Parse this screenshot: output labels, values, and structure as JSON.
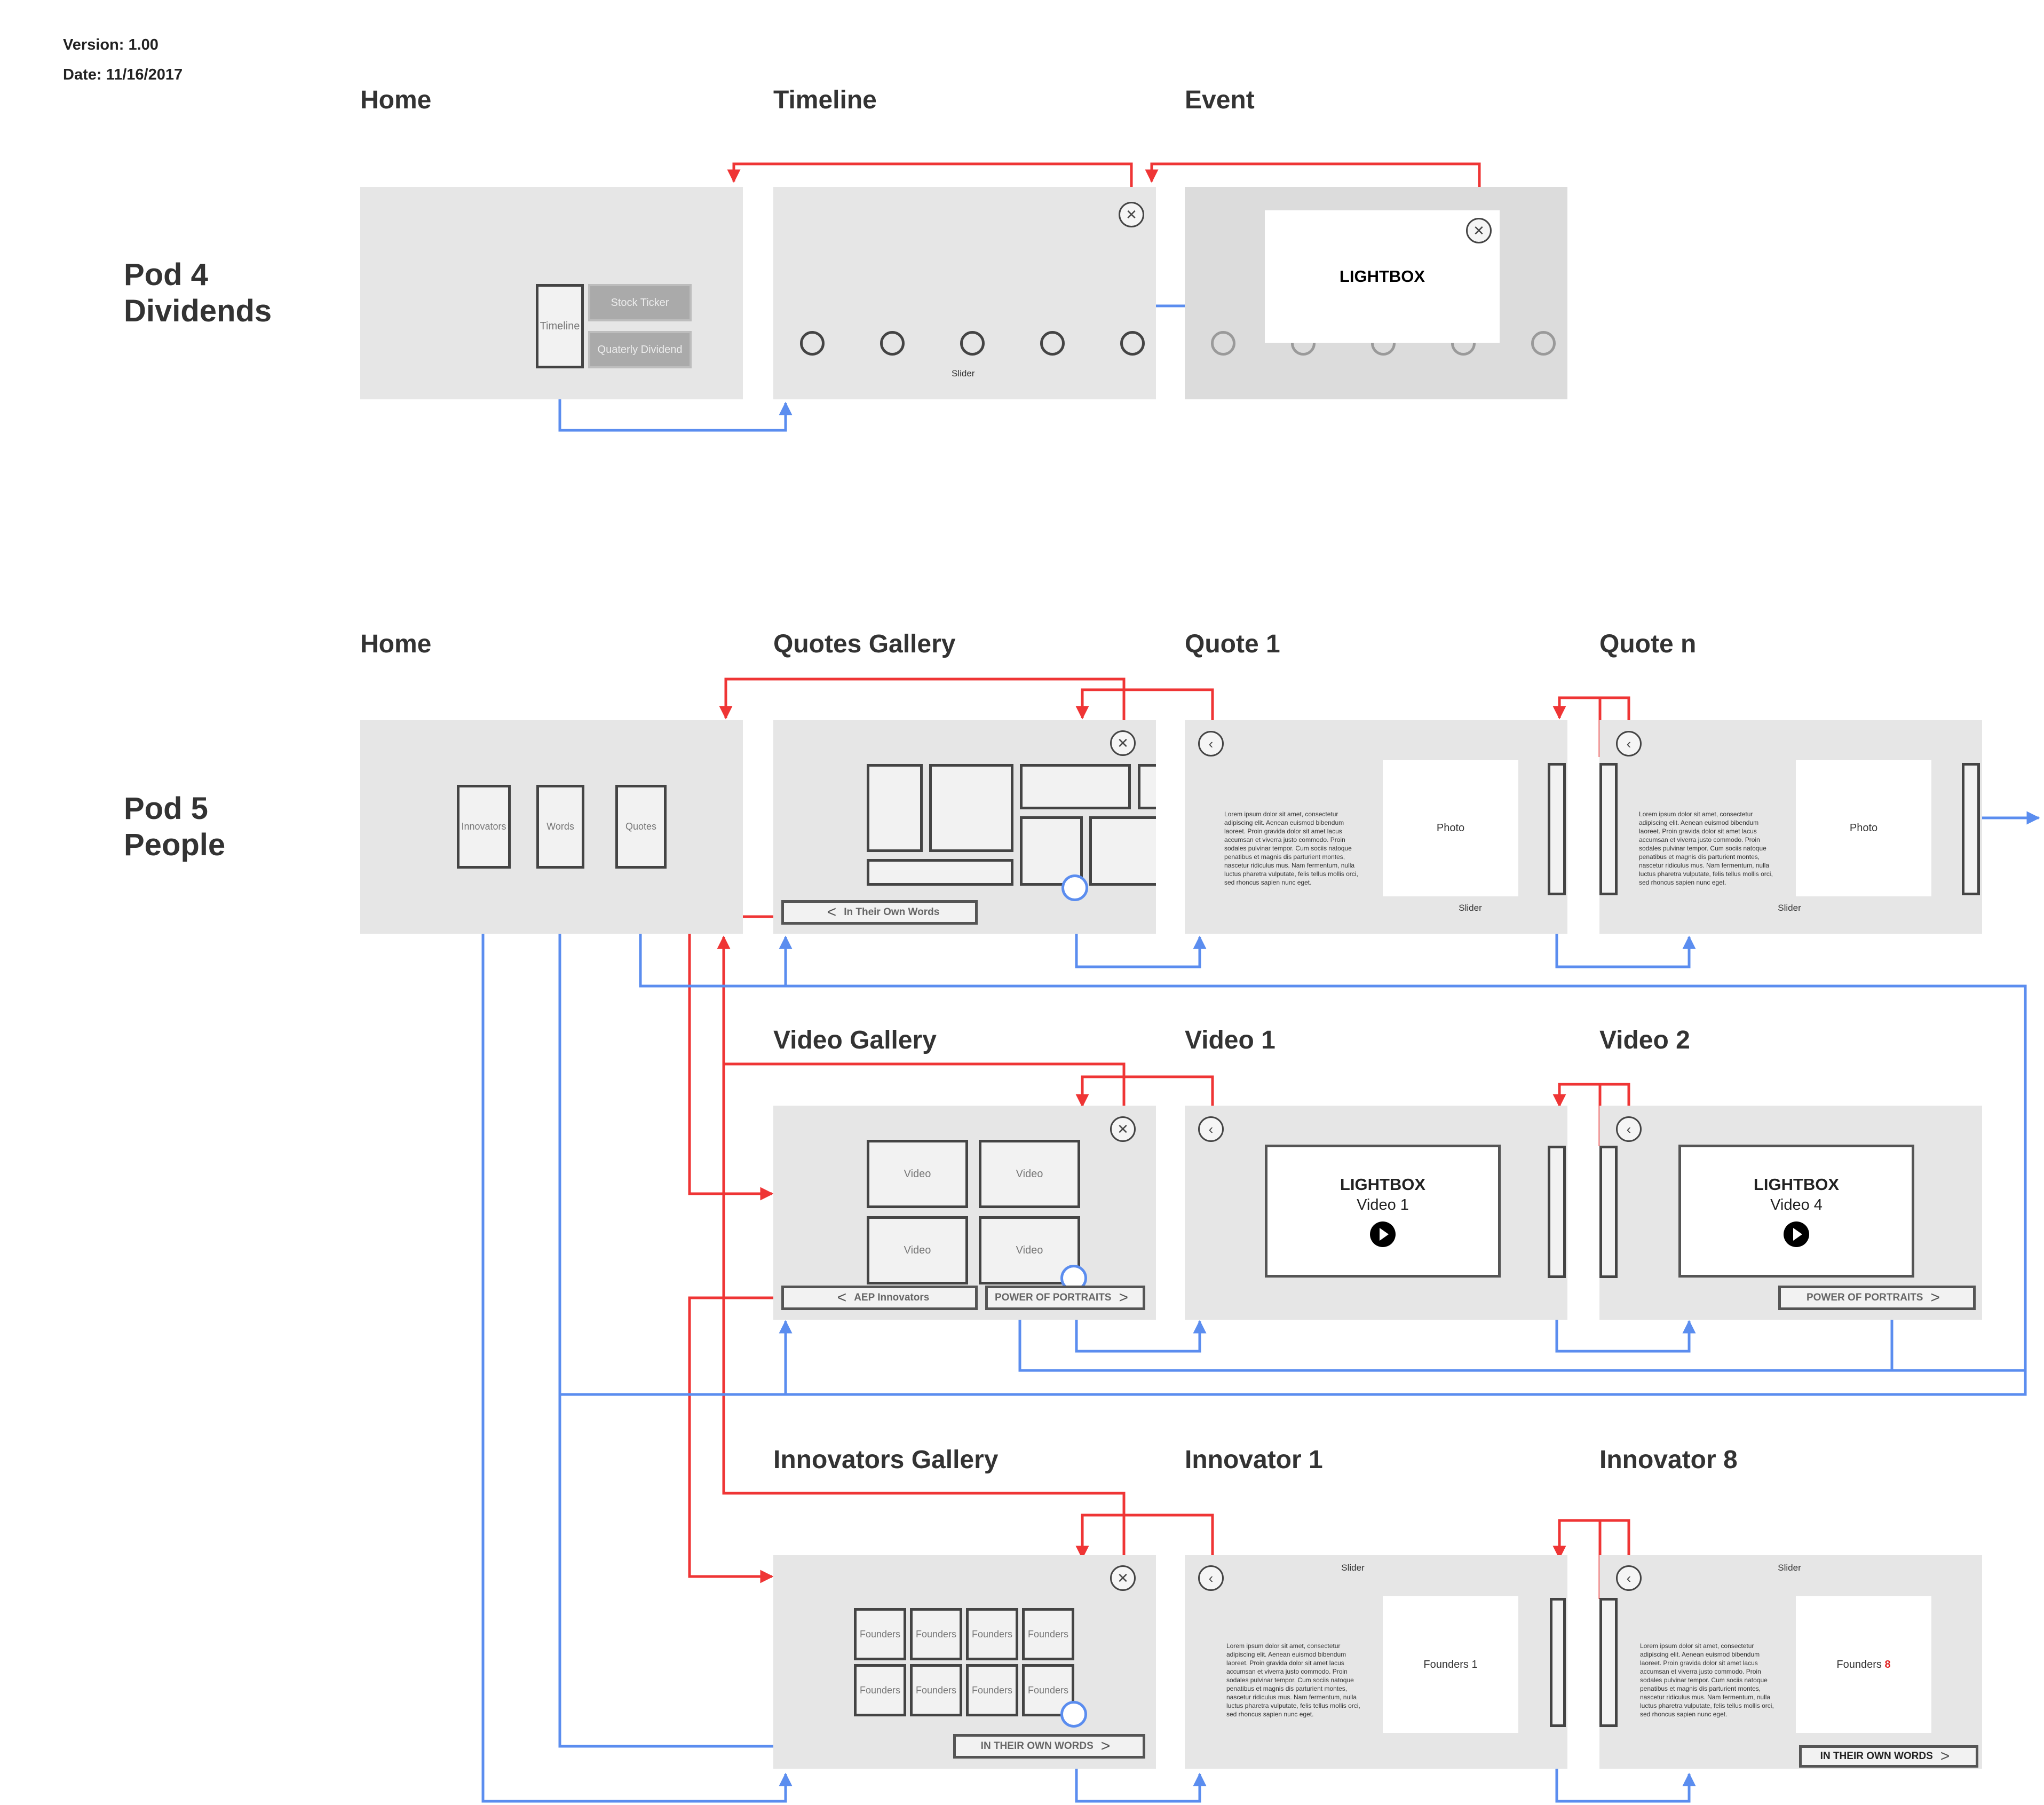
{
  "meta": {
    "version": "Version: 1.00",
    "date": "Date: 11/16/2017"
  },
  "colors": {
    "nav_link": "#5b8def",
    "back_link": "#ef3535",
    "panel": "#e6e6e6"
  },
  "pod4": {
    "label_line1": "Pod 4",
    "label_line2": "Dividends",
    "titles": {
      "home": "Home",
      "timeline": "Timeline",
      "event": "Event"
    },
    "home": {
      "timeline_btn": "Timeline",
      "stock_ticker": "Stock Ticker",
      "quarterly_dividend": "Quaterly Dividend"
    },
    "timeline": {
      "slider": "Slider",
      "close_icon": "close-icon"
    },
    "event": {
      "lightbox": "LIGHTBOX",
      "close_icon": "close-icon"
    }
  },
  "pod5": {
    "label_line1": "Pod 5",
    "label_line2": "People",
    "titles": {
      "home": "Home",
      "quotes_gallery": "Quotes Gallery",
      "quote1": "Quote 1",
      "quoten": "Quote n",
      "video_gallery": "Video Gallery",
      "video1": "Video 1",
      "video2": "Video 2",
      "innovators_gallery": "Innovators Gallery",
      "innovator1": "Innovator 1",
      "innovator8": "Innovator 8"
    },
    "home": {
      "innovators": "Innovators",
      "words": "Words",
      "quotes": "Quotes"
    },
    "quotes_gallery": {
      "nav_label": "In Their Own Words"
    },
    "quote1": {
      "photo": "Photo",
      "slider": "Slider"
    },
    "quoten": {
      "photo": "Photo",
      "slider": "Slider"
    },
    "lorem": "Lorem ipsum dolor sit amet, consectetur adipiscing elit. Aenean euismod bibendum laoreet. Proin gravida dolor sit amet lacus accumsan et viverra justo commodo. Proin sodales pulvinar tempor. Cum sociis natoque penatibus et magnis dis parturient montes, nascetur ridiculus mus. Nam fermentum, nulla luctus pharetra vulputate, felis tellus mollis orci, sed rhoncus sapien nunc eget.",
    "video_gallery": {
      "video": "Video",
      "nav_back": "AEP Innovators",
      "nav_next": "POWER OF PORTRAITS"
    },
    "video1": {
      "lightbox": "LIGHTBOX",
      "sub": "Video 1"
    },
    "video2": {
      "lightbox": "LIGHTBOX",
      "sub": "Video 4",
      "nav_next": "POWER OF PORTRAITS"
    },
    "innovators_gallery": {
      "founders": "Founders",
      "nav_next": "IN THEIR OWN WORDS"
    },
    "innovator1": {
      "slider": "Slider",
      "photo": "Founders 1"
    },
    "innovator8": {
      "slider": "Slider",
      "photo_prefix": "Founders ",
      "photo_num": "8",
      "nav_next": "IN THEIR OWN WORDS"
    }
  }
}
